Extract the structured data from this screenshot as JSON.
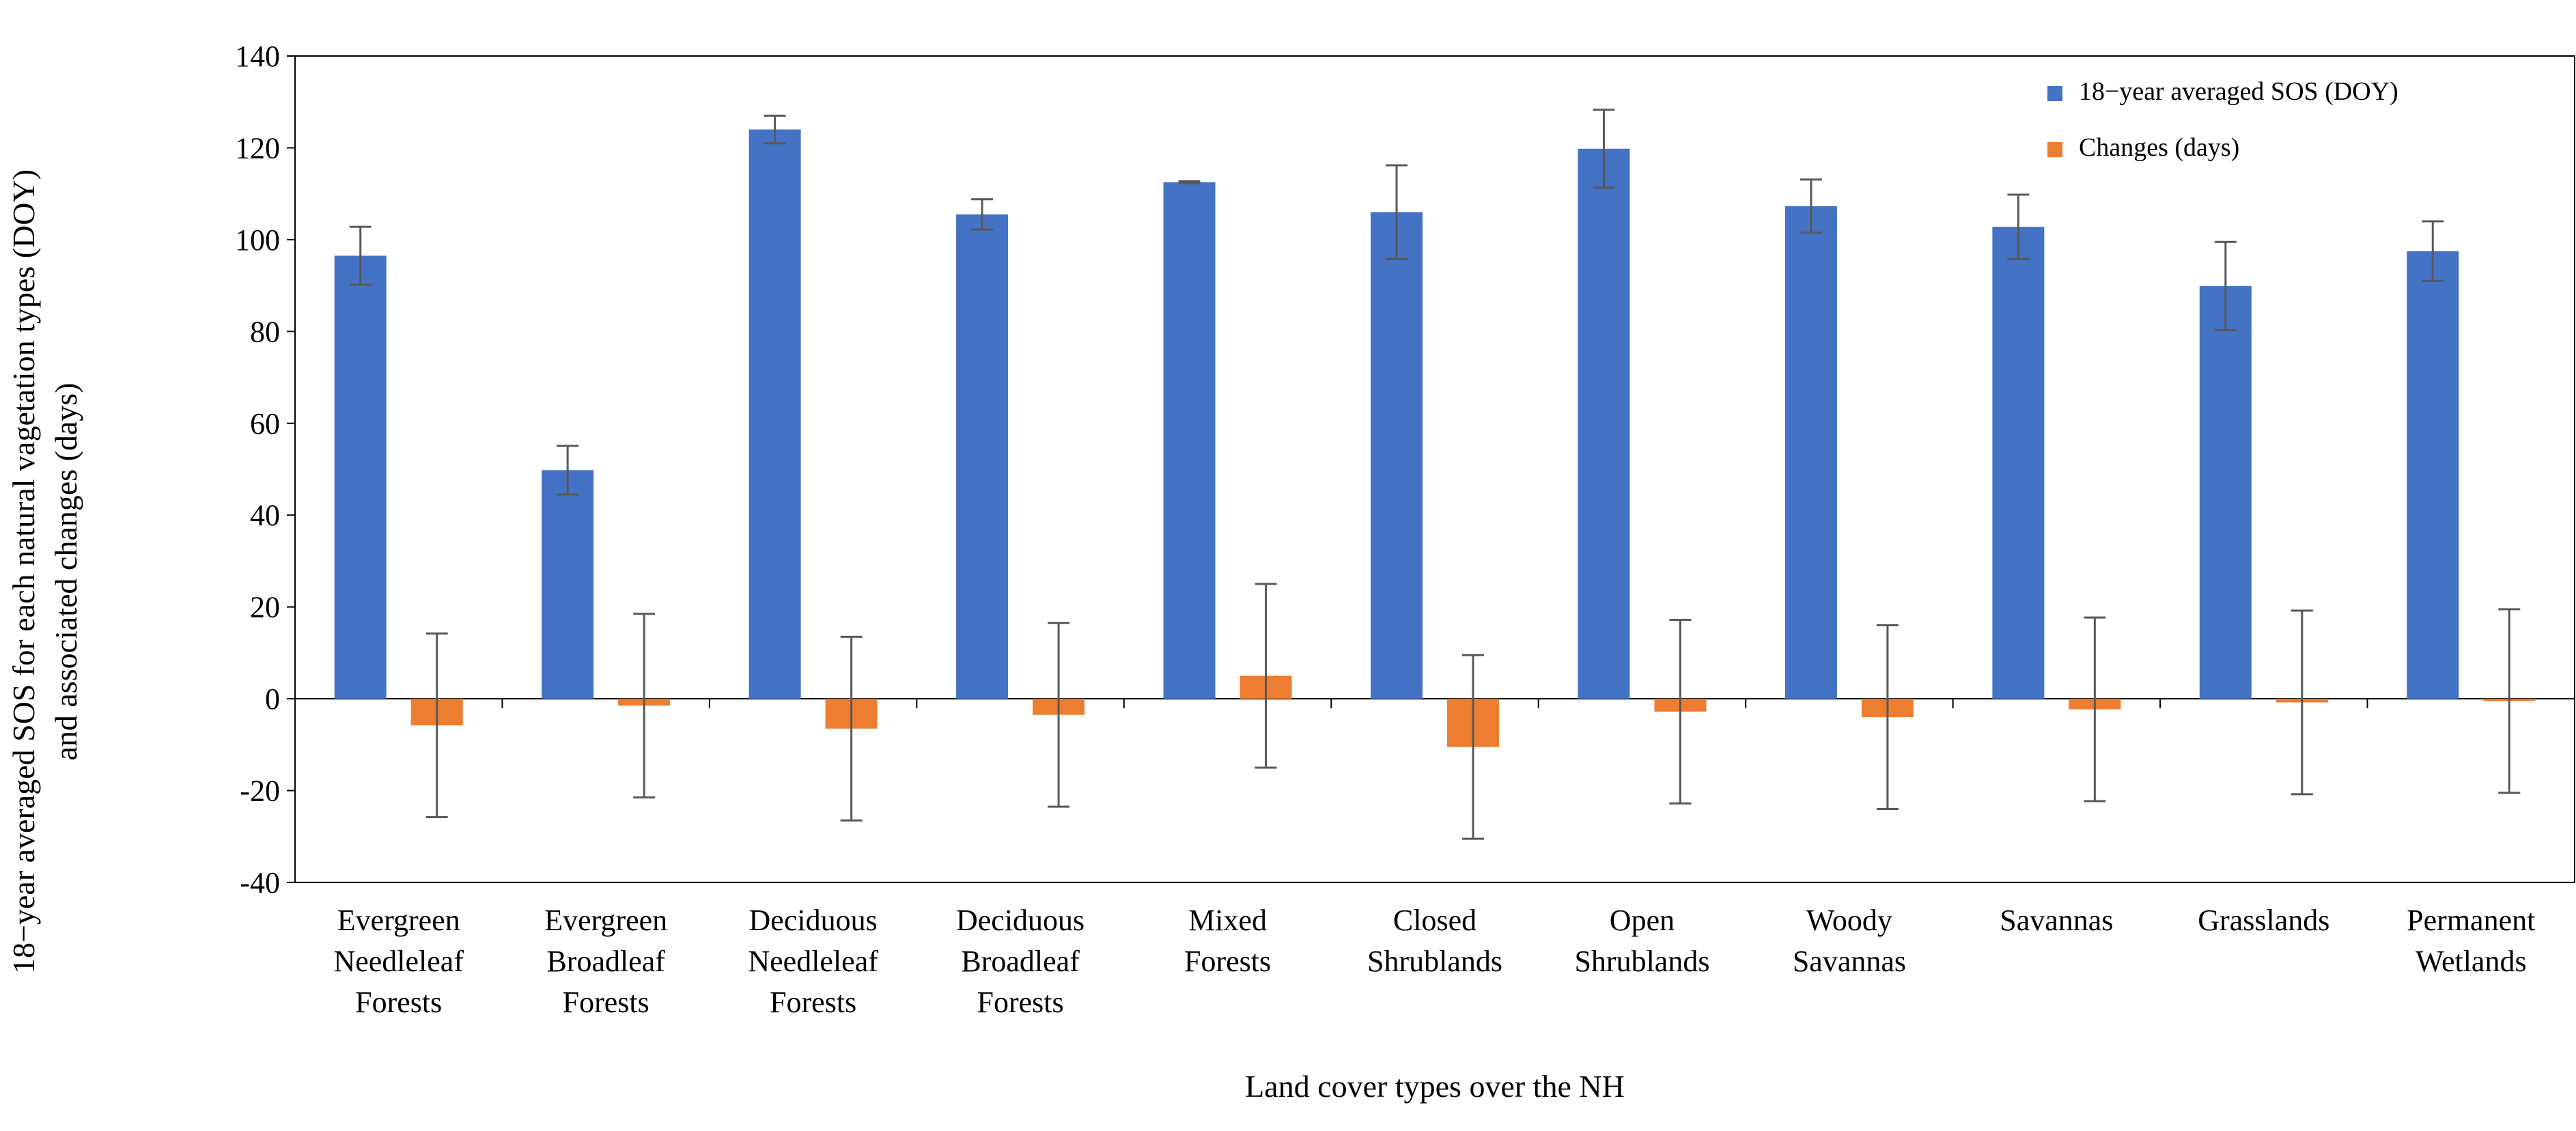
{
  "chart_data": {
    "type": "bar",
    "xlabel": "Land cover types over the NH",
    "ylabel": [
      "18−year averaged SOS for each natural vagetation types (DOY)",
      "and associated changes (days)"
    ],
    "ylim": [
      -40,
      140
    ],
    "yticks": [
      -40,
      -20,
      0,
      20,
      40,
      60,
      80,
      100,
      120,
      140
    ],
    "grid": false,
    "legend_position": "top-right",
    "categories": [
      [
        "Evergreen",
        "Needleleaf",
        "Forests"
      ],
      [
        "Evergreen",
        "Broadleaf",
        "Forests"
      ],
      [
        "Deciduous",
        "Needleleaf",
        "Forests"
      ],
      [
        "Deciduous",
        "Broadleaf",
        "Forests"
      ],
      [
        "Mixed",
        "Forests"
      ],
      [
        "Closed",
        "Shrublands"
      ],
      [
        "Open",
        "Shrublands"
      ],
      [
        "Woody",
        "Savannas"
      ],
      [
        "Savannas"
      ],
      [
        "Grasslands"
      ],
      [
        "Permanent",
        "Wetlands"
      ]
    ],
    "series": [
      {
        "name": "18−year averaged SOS (DOY)",
        "color": "#4472C4",
        "values": [
          96.5,
          49.8,
          124.0,
          105.5,
          112.5,
          106.0,
          119.8,
          107.3,
          102.8,
          89.9,
          97.5
        ],
        "errors": [
          6.3,
          5.3,
          3.0,
          3.3,
          0.2,
          10.2,
          8.5,
          5.8,
          7.0,
          9.6,
          6.5
        ]
      },
      {
        "name": "Changes (days)",
        "color": "#ED7D31",
        "values": [
          -5.8,
          -1.5,
          -6.5,
          -3.5,
          5.0,
          -10.5,
          -2.8,
          -4.0,
          -2.3,
          -0.8,
          -0.5
        ],
        "errors": [
          20.0,
          20.0,
          20.0,
          20.0,
          20.0,
          20.0,
          20.0,
          20.0,
          20.0,
          20.0,
          20.0
        ]
      }
    ]
  }
}
